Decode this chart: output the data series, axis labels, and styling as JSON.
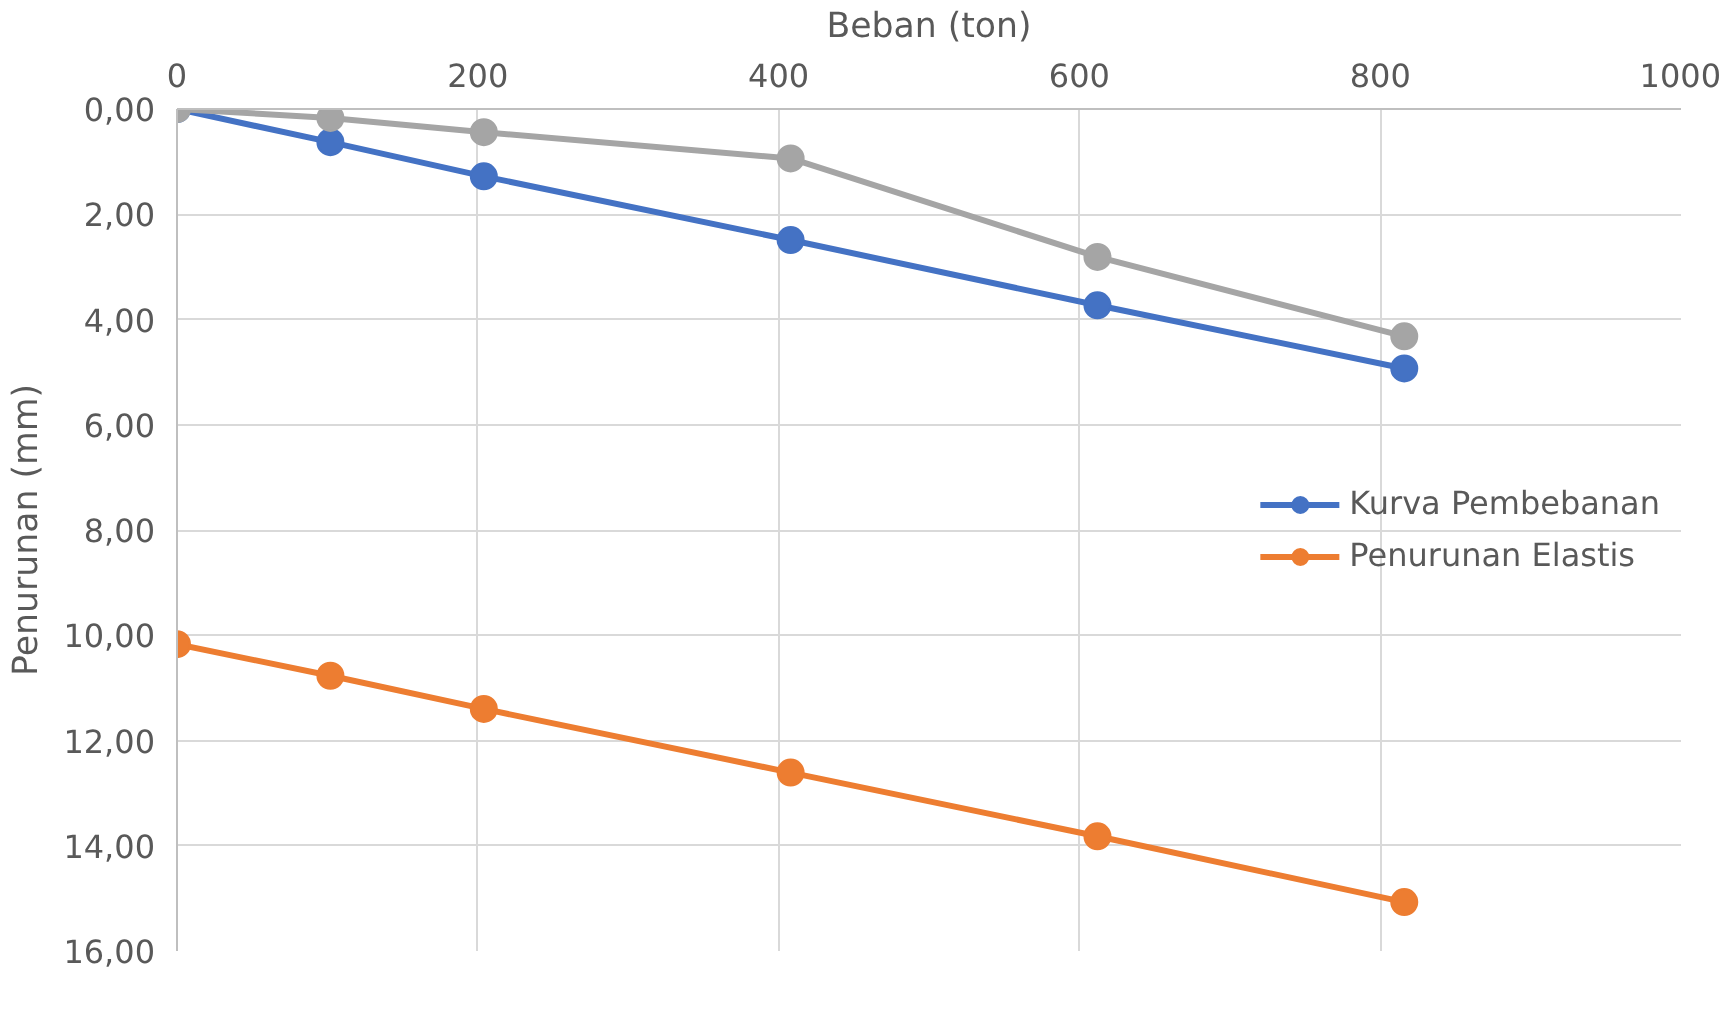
{
  "chart_data": {
    "type": "line",
    "xlabel": "Beban (ton)",
    "ylabel": "Penurunan (mm)",
    "x": [
      0,
      102,
      204,
      408,
      612,
      816
    ],
    "series": [
      {
        "name": "Kurva Pembebanan",
        "color": "#4472c4",
        "values": [
          0,
          0.63,
          1.28,
          2.49,
          3.73,
          4.93
        ]
      },
      {
        "name": "Penurunan Elastis",
        "color": "#ed7d31",
        "values": [
          10.17,
          10.77,
          11.4,
          12.61,
          13.82,
          15.07
        ]
      },
      {
        "color": "#a5a5a5",
        "values": [
          0,
          0.17,
          0.44,
          0.94,
          2.81,
          4.32
        ]
      }
    ],
    "xlim": [
      0,
      1000
    ],
    "xticks": [
      0,
      200,
      400,
      600,
      800,
      1000
    ],
    "ylim": [
      16,
      0
    ],
    "yticks": [
      {
        "value": 0,
        "label": "0,00"
      },
      {
        "value": 2,
        "label": "2,00"
      },
      {
        "value": 4,
        "label": "4,00"
      },
      {
        "value": 6,
        "label": "6,00"
      },
      {
        "value": 8,
        "label": "8,00"
      },
      {
        "value": 10,
        "label": "10,00"
      },
      {
        "value": 12,
        "label": "12,00"
      },
      {
        "value": 14,
        "label": "14,00"
      },
      {
        "value": 16,
        "label": "16,00"
      }
    ],
    "grid": true,
    "legend": "right",
    "marker": "circle",
    "line_style": "solid"
  }
}
